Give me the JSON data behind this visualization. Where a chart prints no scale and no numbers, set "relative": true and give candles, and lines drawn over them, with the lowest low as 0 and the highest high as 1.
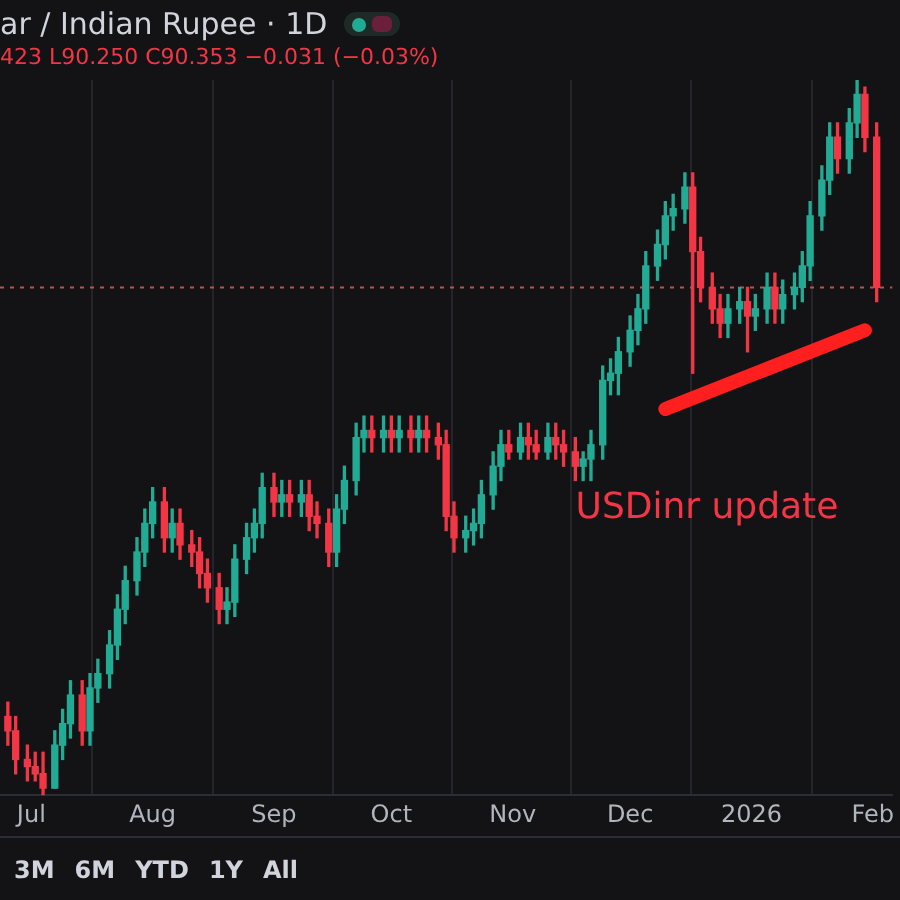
{
  "chart_data": {
    "type": "candlestick",
    "title": "ar / Indian Rupee · 1D",
    "subtitle": "423 L90.250 C90.353 −0.031 (−0.03%)",
    "relative": true,
    "x": [
      "2025-06-25",
      "2025-06-27",
      "2025-06-30",
      "2025-07-02",
      "2025-07-04",
      "2025-07-07",
      "2025-07-09",
      "2025-07-11",
      "2025-07-14",
      "2025-07-16",
      "2025-07-18",
      "2025-07-21",
      "2025-07-23",
      "2025-07-25",
      "2025-07-28",
      "2025-07-30",
      "2025-08-01",
      "2025-08-04",
      "2025-08-06",
      "2025-08-08",
      "2025-08-11",
      "2025-08-13",
      "2025-08-15",
      "2025-08-18",
      "2025-08-20",
      "2025-08-22",
      "2025-08-25",
      "2025-08-27",
      "2025-08-29",
      "2025-09-01",
      "2025-09-03",
      "2025-09-05",
      "2025-09-08",
      "2025-09-10",
      "2025-09-12",
      "2025-09-15",
      "2025-09-17",
      "2025-09-19",
      "2025-09-22",
      "2025-09-24",
      "2025-09-26",
      "2025-09-29",
      "2025-10-01",
      "2025-10-03",
      "2025-10-06",
      "2025-10-08",
      "2025-10-10",
      "2025-10-13",
      "2025-10-15",
      "2025-10-17",
      "2025-10-20",
      "2025-10-22",
      "2025-10-24",
      "2025-10-27",
      "2025-10-29",
      "2025-10-31",
      "2025-11-03",
      "2025-11-05",
      "2025-11-07",
      "2025-11-10",
      "2025-11-12",
      "2025-11-14",
      "2025-11-17",
      "2025-11-19",
      "2025-11-21",
      "2025-11-24",
      "2025-11-26",
      "2025-11-28",
      "2025-12-01",
      "2025-12-03",
      "2025-12-05",
      "2025-12-08",
      "2025-12-10",
      "2025-12-12",
      "2025-12-15",
      "2025-12-17",
      "2025-12-19",
      "2025-12-22",
      "2025-12-24",
      "2025-12-26",
      "2025-12-29",
      "2025-12-31",
      "2026-01-02",
      "2026-01-05",
      "2026-01-07",
      "2026-01-09",
      "2026-01-12",
      "2026-01-14",
      "2026-01-16",
      "2026-01-19",
      "2026-01-21",
      "2026-01-23",
      "2026-01-26",
      "2026-01-28",
      "2026-01-30",
      "2026-02-02"
    ],
    "ohlc": [
      [
        0.11,
        0.13,
        0.07,
        0.09
      ],
      [
        0.09,
        0.11,
        0.03,
        0.05
      ],
      [
        0.05,
        0.07,
        0.02,
        0.04
      ],
      [
        0.04,
        0.06,
        0.02,
        0.03
      ],
      [
        0.03,
        0.06,
        0,
        0.01
      ],
      [
        0.01,
        0.09,
        0.01,
        0.07
      ],
      [
        0.07,
        0.12,
        0.05,
        0.1
      ],
      [
        0.1,
        0.16,
        0.08,
        0.14
      ],
      [
        0.14,
        0.16,
        0.07,
        0.09
      ],
      [
        0.09,
        0.17,
        0.07,
        0.15
      ],
      [
        0.15,
        0.19,
        0.13,
        0.17
      ],
      [
        0.17,
        0.23,
        0.15,
        0.21
      ],
      [
        0.21,
        0.28,
        0.19,
        0.26
      ],
      [
        0.26,
        0.32,
        0.24,
        0.3
      ],
      [
        0.3,
        0.36,
        0.28,
        0.34
      ],
      [
        0.34,
        0.4,
        0.32,
        0.38
      ],
      [
        0.38,
        0.43,
        0.36,
        0.41
      ],
      [
        0.41,
        0.43,
        0.34,
        0.36
      ],
      [
        0.36,
        0.4,
        0.34,
        0.38
      ],
      [
        0.38,
        0.4,
        0.33,
        0.35
      ],
      [
        0.35,
        0.37,
        0.32,
        0.34
      ],
      [
        0.34,
        0.36,
        0.29,
        0.31
      ],
      [
        0.31,
        0.33,
        0.27,
        0.29
      ],
      [
        0.29,
        0.31,
        0.24,
        0.26
      ],
      [
        0.26,
        0.29,
        0.24,
        0.27
      ],
      [
        0.27,
        0.35,
        0.25,
        0.33
      ],
      [
        0.33,
        0.38,
        0.31,
        0.36
      ],
      [
        0.36,
        0.4,
        0.34,
        0.38
      ],
      [
        0.38,
        0.45,
        0.36,
        0.43
      ],
      [
        0.43,
        0.45,
        0.39,
        0.41
      ],
      [
        0.41,
        0.44,
        0.39,
        0.42
      ],
      [
        0.42,
        0.44,
        0.39,
        0.41
      ],
      [
        0.41,
        0.44,
        0.39,
        0.42
      ],
      [
        0.42,
        0.44,
        0.37,
        0.39
      ],
      [
        0.39,
        0.41,
        0.36,
        0.38
      ],
      [
        0.38,
        0.4,
        0.32,
        0.34
      ],
      [
        0.34,
        0.42,
        0.32,
        0.4
      ],
      [
        0.4,
        0.46,
        0.38,
        0.44
      ],
      [
        0.44,
        0.52,
        0.42,
        0.5
      ],
      [
        0.5,
        0.53,
        0.48,
        0.51
      ],
      [
        0.51,
        0.53,
        0.48,
        0.5
      ],
      [
        0.5,
        0.53,
        0.48,
        0.51
      ],
      [
        0.51,
        0.53,
        0.48,
        0.5
      ],
      [
        0.5,
        0.53,
        0.48,
        0.51
      ],
      [
        0.51,
        0.53,
        0.48,
        0.5
      ],
      [
        0.5,
        0.53,
        0.48,
        0.51
      ],
      [
        0.51,
        0.53,
        0.48,
        0.5
      ],
      [
        0.5,
        0.52,
        0.47,
        0.49
      ],
      [
        0.49,
        0.51,
        0.37,
        0.39
      ],
      [
        0.39,
        0.41,
        0.34,
        0.36
      ],
      [
        0.36,
        0.39,
        0.34,
        0.37
      ],
      [
        0.37,
        0.4,
        0.35,
        0.38
      ],
      [
        0.38,
        0.44,
        0.36,
        0.42
      ],
      [
        0.42,
        0.48,
        0.4,
        0.46
      ],
      [
        0.46,
        0.51,
        0.44,
        0.49
      ],
      [
        0.49,
        0.51,
        0.47,
        0.48
      ],
      [
        0.48,
        0.52,
        0.47,
        0.5
      ],
      [
        0.5,
        0.52,
        0.47,
        0.49
      ],
      [
        0.49,
        0.51,
        0.47,
        0.48
      ],
      [
        0.48,
        0.52,
        0.47,
        0.5
      ],
      [
        0.5,
        0.52,
        0.47,
        0.49
      ],
      [
        0.49,
        0.51,
        0.46,
        0.48
      ],
      [
        0.48,
        0.5,
        0.44,
        0.46
      ],
      [
        0.46,
        0.48,
        0.44,
        0.47
      ],
      [
        0.47,
        0.51,
        0.44,
        0.49
      ],
      [
        0.49,
        0.6,
        0.47,
        0.58
      ],
      [
        0.58,
        0.61,
        0.56,
        0.59
      ],
      [
        0.59,
        0.64,
        0.56,
        0.62
      ],
      [
        0.62,
        0.67,
        0.6,
        0.65
      ],
      [
        0.65,
        0.7,
        0.63,
        0.68
      ],
      [
        0.68,
        0.76,
        0.66,
        0.74
      ],
      [
        0.74,
        0.79,
        0.72,
        0.77
      ],
      [
        0.77,
        0.83,
        0.75,
        0.81
      ],
      [
        0.81,
        0.84,
        0.79,
        0.82
      ],
      [
        0.82,
        0.87,
        0.8,
        0.85
      ],
      [
        0.85,
        0.87,
        0.59,
        0.76
      ],
      [
        0.76,
        0.78,
        0.69,
        0.71
      ],
      [
        0.71,
        0.73,
        0.66,
        0.68
      ],
      [
        0.68,
        0.7,
        0.64,
        0.66
      ],
      [
        0.66,
        0.7,
        0.64,
        0.68
      ],
      [
        0.68,
        0.71,
        0.66,
        0.69
      ],
      [
        0.69,
        0.71,
        0.62,
        0.67
      ],
      [
        0.67,
        0.7,
        0.65,
        0.68
      ],
      [
        0.68,
        0.73,
        0.66,
        0.71
      ],
      [
        0.71,
        0.73,
        0.66,
        0.68
      ],
      [
        0.68,
        0.72,
        0.66,
        0.7
      ],
      [
        0.7,
        0.73,
        0.68,
        0.71
      ],
      [
        0.71,
        0.76,
        0.69,
        0.74
      ],
      [
        0.74,
        0.83,
        0.72,
        0.81
      ],
      [
        0.81,
        0.88,
        0.79,
        0.86
      ],
      [
        0.86,
        0.94,
        0.84,
        0.92
      ],
      [
        0.92,
        0.94,
        0.87,
        0.89
      ],
      [
        0.89,
        0.96,
        0.87,
        0.94
      ],
      [
        0.94,
        1,
        0.92,
        0.98
      ],
      [
        0.98,
        0.99,
        0.9,
        0.92
      ],
      [
        0.92,
        0.94,
        0.69,
        0.71
      ]
    ],
    "xlim": [
      "2025-06-23",
      "2026-02-06"
    ],
    "xticks": [
      {
        "value": "2025-07-01",
        "label": "Jul"
      },
      {
        "value": "2025-08-01",
        "label": "Aug"
      },
      {
        "value": "2025-09-01",
        "label": "Sep"
      },
      {
        "value": "2025-10-01",
        "label": "Oct"
      },
      {
        "value": "2025-11-01",
        "label": "Nov"
      },
      {
        "value": "2025-12-01",
        "label": "Dec"
      },
      {
        "value": "2026-01-01",
        "label": "2026"
      },
      {
        "value": "2026-02-01",
        "label": "Feb"
      }
    ],
    "grid": "x",
    "series": [
      {
        "type": "line",
        "x": [
          "2025-12-10",
          "2026-01-30"
        ],
        "values": [
          0.54,
          0.65
        ],
        "color": "#ff1f1f"
      }
    ],
    "ref_lines": [
      {
        "axis": "y",
        "value": 0.71,
        "color": "#c0504d",
        "line_style": "dotted"
      }
    ],
    "annotations": [
      "USDinr update",
      "3M",
      "6M",
      "YTD",
      "1Y",
      "All"
    ]
  }
}
